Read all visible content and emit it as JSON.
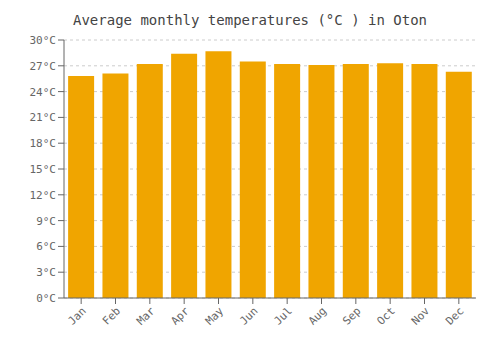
{
  "chart_data": {
    "type": "bar",
    "title": "Average monthly temperatures (°C ) in Oton",
    "categories": [
      "Jan",
      "Feb",
      "Mar",
      "Apr",
      "May",
      "Jun",
      "Jul",
      "Aug",
      "Sep",
      "Oct",
      "Nov",
      "Dec"
    ],
    "values": [
      25.8,
      26.1,
      27.2,
      28.4,
      28.7,
      27.5,
      27.2,
      27.1,
      27.2,
      27.3,
      27.2,
      26.3
    ],
    "color": "#F0A500",
    "ylim": [
      0,
      30
    ],
    "yticks": [
      {
        "value": 0,
        "label": "0°C"
      },
      {
        "value": 3,
        "label": "3°C"
      },
      {
        "value": 6,
        "label": "6°C"
      },
      {
        "value": 9,
        "label": "9°C"
      },
      {
        "value": 12,
        "label": "12°C"
      },
      {
        "value": 15,
        "label": "15°C"
      },
      {
        "value": 18,
        "label": "18°C"
      },
      {
        "value": 21,
        "label": "21°C"
      },
      {
        "value": 24,
        "label": "24°C"
      },
      {
        "value": 27,
        "label": "27°C"
      },
      {
        "value": 30,
        "label": "30°C"
      }
    ],
    "grid": true
  }
}
